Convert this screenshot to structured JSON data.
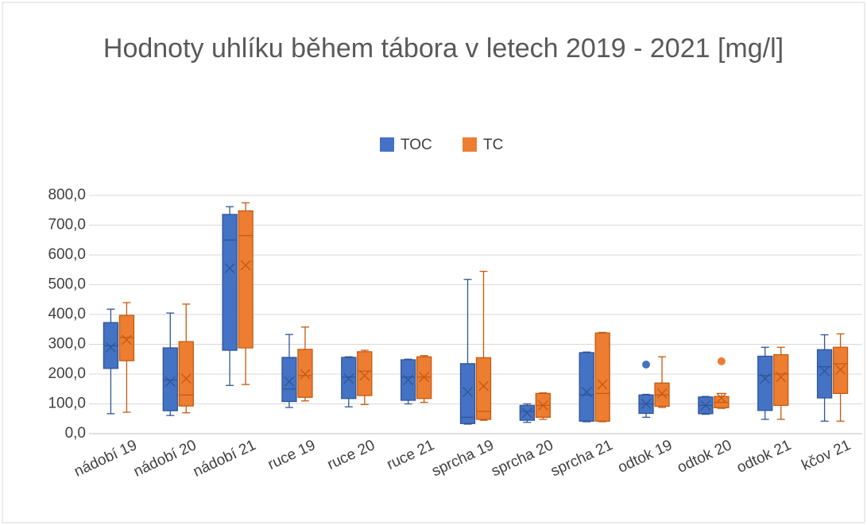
{
  "chart_data": {
    "type": "box",
    "title": "Hodnoty uhlíku během tábora v letech 2019 - 2021 [mg/l]",
    "categories": [
      "nádobí 19",
      "nádobí 20",
      "nádobí 21",
      "ruce 19",
      "ruce 20",
      "ruce 21",
      "sprcha 19",
      "sprcha 20",
      "sprcha 21",
      "odtok 19",
      "odtok 20",
      "odtok 21",
      "kčov 21"
    ],
    "ylim": [
      0,
      800
    ],
    "yticks": [
      {
        "value": 0,
        "label": "0,0"
      },
      {
        "value": 100,
        "label": "100,0"
      },
      {
        "value": 200,
        "label": "200,0"
      },
      {
        "value": 300,
        "label": "300,0"
      },
      {
        "value": 400,
        "label": "400,0"
      },
      {
        "value": 500,
        "label": "500,0"
      },
      {
        "value": 600,
        "label": "600,0"
      },
      {
        "value": 700,
        "label": "700,0"
      },
      {
        "value": 800,
        "label": "800,0"
      }
    ],
    "grid": true,
    "legend": "top",
    "series": [
      {
        "name": "TOC",
        "color": "#4472c4",
        "edge": "#2f5597",
        "boxes": [
          {
            "min": 67,
            "q1": 219,
            "median": 295,
            "q3": 373,
            "max": 418,
            "mean": 290
          },
          {
            "min": 61,
            "q1": 77,
            "median": 180,
            "q3": 288,
            "max": 405,
            "mean": 175
          },
          {
            "min": 162,
            "q1": 280,
            "median": 650,
            "q3": 736,
            "max": 762,
            "mean": 555
          },
          {
            "min": 88,
            "q1": 108,
            "median": 150,
            "q3": 256,
            "max": 333,
            "mean": 175
          },
          {
            "min": 90,
            "q1": 118,
            "median": 190,
            "q3": 256,
            "max": 258,
            "mean": 185
          },
          {
            "min": 100,
            "q1": 112,
            "median": 190,
            "q3": 248,
            "max": 250,
            "mean": 180
          },
          {
            "min": 32,
            "q1": 34,
            "median": 55,
            "q3": 235,
            "max": 518,
            "mean": 140
          },
          {
            "min": 38,
            "q1": 45,
            "median": 75,
            "q3": 95,
            "max": 100,
            "mean": 70
          },
          {
            "min": 40,
            "q1": 42,
            "median": 130,
            "q3": 272,
            "max": 274,
            "mean": 140
          },
          {
            "min": 55,
            "q1": 68,
            "median": 100,
            "q3": 130,
            "max": 132,
            "mean": 100,
            "outliers": [
              232
            ]
          },
          {
            "min": 65,
            "q1": 67,
            "median": 95,
            "q3": 123,
            "max": 125,
            "mean": 95
          },
          {
            "min": 48,
            "q1": 78,
            "median": 195,
            "q3": 260,
            "max": 290,
            "mean": 185
          },
          {
            "min": 42,
            "q1": 120,
            "median": 225,
            "q3": 282,
            "max": 332,
            "mean": 210
          }
        ]
      },
      {
        "name": "TC",
        "color": "#ed7d31",
        "edge": "#c55a11",
        "boxes": [
          {
            "min": 72,
            "q1": 245,
            "median": 323,
            "q3": 397,
            "max": 440,
            "mean": 315
          },
          {
            "min": 70,
            "q1": 93,
            "median": 130,
            "q3": 309,
            "max": 435,
            "mean": 185
          },
          {
            "min": 165,
            "q1": 288,
            "median": 665,
            "q3": 748,
            "max": 775,
            "mean": 565
          },
          {
            "min": 110,
            "q1": 122,
            "median": 195,
            "q3": 283,
            "max": 358,
            "mean": 200
          },
          {
            "min": 98,
            "q1": 128,
            "median": 210,
            "q3": 275,
            "max": 280,
            "mean": 195
          },
          {
            "min": 105,
            "q1": 118,
            "median": 190,
            "q3": 258,
            "max": 262,
            "mean": 190
          },
          {
            "min": 45,
            "q1": 48,
            "median": 75,
            "q3": 255,
            "max": 545,
            "mean": 160
          },
          {
            "min": 48,
            "q1": 55,
            "median": 95,
            "q3": 135,
            "max": 137,
            "mean": 95
          },
          {
            "min": 40,
            "q1": 42,
            "median": 135,
            "q3": 338,
            "max": 340,
            "mean": 165
          },
          {
            "min": 88,
            "q1": 92,
            "median": 130,
            "q3": 170,
            "max": 258,
            "mean": 135
          },
          {
            "min": 85,
            "q1": 87,
            "median": 105,
            "q3": 125,
            "max": 135,
            "mean": 120,
            "outliers": [
              243
            ]
          },
          {
            "min": 48,
            "q1": 95,
            "median": 200,
            "q3": 265,
            "max": 290,
            "mean": 190
          },
          {
            "min": 42,
            "q1": 135,
            "median": 235,
            "q3": 290,
            "max": 335,
            "mean": 215
          }
        ]
      }
    ]
  }
}
